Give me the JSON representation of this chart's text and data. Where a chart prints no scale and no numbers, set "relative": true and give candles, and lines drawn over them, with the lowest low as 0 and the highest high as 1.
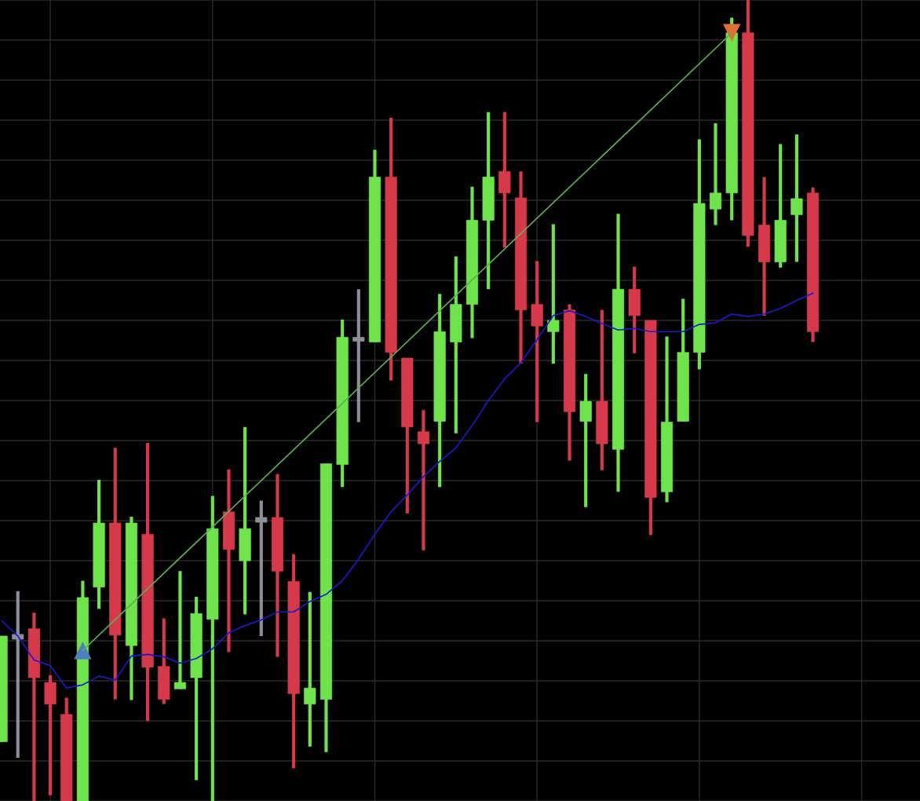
{
  "chart_data": {
    "type": "candlestick",
    "relative": true,
    "grid": true,
    "categories": [
      null,
      null,
      null,
      null,
      null,
      null,
      null,
      null,
      null,
      null,
      null,
      null,
      null,
      null,
      null,
      null,
      null,
      null,
      null,
      null,
      null,
      null,
      null,
      null,
      null,
      null,
      null,
      null,
      null,
      null,
      null,
      null,
      null,
      null,
      null,
      null,
      null,
      null,
      null,
      null,
      null,
      null,
      null,
      null,
      null,
      null,
      null,
      null,
      null,
      null,
      null
    ],
    "ohlc": [
      [
        0.074,
        0.206,
        0.074,
        0.206
      ],
      [
        0.208,
        0.262,
        0.054,
        0.202
      ],
      [
        0.215,
        0.235,
        0,
        0.154
      ],
      [
        0.148,
        0.157,
        0.007,
        0.121
      ],
      [
        0.108,
        0.129,
        0,
        0
      ],
      [
        0,
        0.275,
        0,
        0.254
      ],
      [
        0.267,
        0.401,
        0.24,
        0.347
      ],
      [
        0.347,
        0.441,
        0.127,
        0.207
      ],
      [
        0.194,
        0.355,
        0.126,
        0.347
      ],
      [
        0.333,
        0.447,
        0.1,
        0.167
      ],
      [
        0.168,
        0.228,
        0.121,
        0.127
      ],
      [
        0.14,
        0.287,
        0.14,
        0.148
      ],
      [
        0.154,
        0.255,
        0.026,
        0.234
      ],
      [
        0.227,
        0.381,
        0,
        0.34
      ],
      [
        0.361,
        0.414,
        0.186,
        0.314
      ],
      [
        0.3,
        0.467,
        0.233,
        0.34
      ],
      [
        0.354,
        0.375,
        0.206,
        0.348
      ],
      [
        0.354,
        0.408,
        0.18,
        0.287
      ],
      [
        0.274,
        0.308,
        0.041,
        0.134
      ],
      [
        0.121,
        0.261,
        0.068,
        0.141
      ],
      [
        0.127,
        0.421,
        0.061,
        0.421
      ],
      [
        0.42,
        0.601,
        0.392,
        0.579
      ],
      [
        0.579,
        0.639,
        0.473,
        0.574
      ],
      [
        0.573,
        0.813,
        0.573,
        0.779
      ],
      [
        0.779,
        0.853,
        0.525,
        0.56
      ],
      [
        0.553,
        0.553,
        0.359,
        0.467
      ],
      [
        0.461,
        0.488,
        0.313,
        0.446
      ],
      [
        0.474,
        0.633,
        0.392,
        0.586
      ],
      [
        0.573,
        0.68,
        0.459,
        0.62
      ],
      [
        0.62,
        0.767,
        0.578,
        0.725
      ],
      [
        0.725,
        0.86,
        0.639,
        0.779
      ],
      [
        0.786,
        0.86,
        0.691,
        0.759
      ],
      [
        0.753,
        0.786,
        0.546,
        0.613
      ],
      [
        0.62,
        0.674,
        0.473,
        0.593
      ],
      [
        0.586,
        0.72,
        0.546,
        0.6
      ],
      [
        0.613,
        0.62,
        0.425,
        0.486
      ],
      [
        0.474,
        0.533,
        0.367,
        0.499
      ],
      [
        0.499,
        0.613,
        0.413,
        0.446
      ],
      [
        0.439,
        0.733,
        0.386,
        0.639
      ],
      [
        0.639,
        0.667,
        0.559,
        0.606
      ],
      [
        0.6,
        0.6,
        0.332,
        0.379
      ],
      [
        0.386,
        0.58,
        0.373,
        0.473
      ],
      [
        0.474,
        0.627,
        0.474,
        0.56
      ],
      [
        0.56,
        0.826,
        0.539,
        0.746
      ],
      [
        0.739,
        0.846,
        0.719,
        0.759
      ],
      [
        0.759,
        0.978,
        0.725,
        0.959
      ],
      [
        0.959,
        1,
        0.692,
        0.706
      ],
      [
        0.719,
        0.779,
        0.606,
        0.673
      ],
      [
        0.673,
        0.82,
        0.666,
        0.725
      ],
      [
        0.732,
        0.832,
        0.673,
        0.752
      ],
      [
        0.759,
        0.766,
        0.573,
        0.586
      ]
    ],
    "colors": [
      "#6fe34b",
      "#8a8f9a",
      "#d63a4a",
      "#d63a4a",
      "#d63a4a",
      "#6fe34b",
      "#6fe34b",
      "#d63a4a",
      "#6fe34b",
      "#d63a4a",
      "#d63a4a",
      "#6fe34b",
      "#6fe34b",
      "#6fe34b",
      "#d63a4a",
      "#6fe34b",
      "#8a8f9a",
      "#d63a4a",
      "#d63a4a",
      "#6fe34b",
      "#6fe34b",
      "#6fe34b",
      "#8a8f9a",
      "#6fe34b",
      "#d63a4a",
      "#d63a4a",
      "#d63a4a",
      "#6fe34b",
      "#6fe34b",
      "#6fe34b",
      "#6fe34b",
      "#d63a4a",
      "#d63a4a",
      "#d63a4a",
      "#6fe34b",
      "#d63a4a",
      "#6fe34b",
      "#d63a4a",
      "#6fe34b",
      "#d63a4a",
      "#d63a4a",
      "#6fe34b",
      "#6fe34b",
      "#6fe34b",
      "#6fe34b",
      "#6fe34b",
      "#d63a4a",
      "#d63a4a",
      "#6fe34b",
      "#6fe34b",
      "#d63a4a"
    ],
    "series": [
      {
        "type": "line",
        "color": "#1a1acc",
        "values": [
          0.225,
          0.206,
          0.176,
          0.169,
          0.141,
          0.145,
          0.156,
          0.151,
          0.181,
          0.183,
          0.18,
          0.172,
          0.178,
          0.19,
          0.21,
          0.219,
          0.226,
          0.236,
          0.236,
          0.249,
          0.258,
          0.275,
          0.302,
          0.333,
          0.361,
          0.382,
          0.405,
          0.424,
          0.441,
          0.469,
          0.5,
          0.527,
          0.547,
          0.576,
          0.606,
          0.612,
          0.605,
          0.596,
          0.588,
          0.59,
          0.586,
          0.586,
          0.586,
          0.595,
          0.597,
          0.608,
          0.605,
          0.608,
          0.615,
          0.625,
          0.634
        ]
      },
      {
        "type": "line",
        "color": "#5fae55",
        "values": [
          null,
          null,
          null,
          null,
          null,
          0.188,
          null,
          null,
          null,
          null,
          null,
          null,
          null,
          null,
          null,
          null,
          null,
          null,
          null,
          null,
          null,
          null,
          null,
          null,
          null,
          null,
          null,
          null,
          null,
          null,
          null,
          null,
          null,
          null,
          null,
          null,
          null,
          null,
          null,
          null,
          null,
          null,
          null,
          null,
          null,
          0.959,
          null,
          null,
          null,
          null,
          null
        ]
      },
      {
        "type": "scatter",
        "marker": "triangle",
        "color": "#4a7fc0",
        "values": [
          null,
          null,
          null,
          null,
          null,
          0.188,
          null,
          null,
          null,
          null,
          null,
          null,
          null,
          null,
          null,
          null,
          null,
          null,
          null,
          null,
          null,
          null,
          null,
          null,
          null,
          null,
          null,
          null,
          null,
          null,
          null,
          null,
          null,
          null,
          null,
          null,
          null,
          null,
          null,
          null,
          null,
          null,
          null,
          null,
          null,
          null,
          null,
          null,
          null,
          null,
          null
        ]
      },
      {
        "type": "scatter",
        "marker": "triangle",
        "color": "#e07030",
        "values": [
          null,
          null,
          null,
          null,
          null,
          null,
          null,
          null,
          null,
          null,
          null,
          null,
          null,
          null,
          null,
          null,
          null,
          null,
          null,
          null,
          null,
          null,
          null,
          null,
          null,
          null,
          null,
          null,
          null,
          null,
          null,
          null,
          null,
          null,
          null,
          null,
          null,
          null,
          null,
          null,
          null,
          null,
          null,
          null,
          null,
          0.959,
          null,
          null,
          null,
          null,
          null
        ]
      }
    ]
  }
}
